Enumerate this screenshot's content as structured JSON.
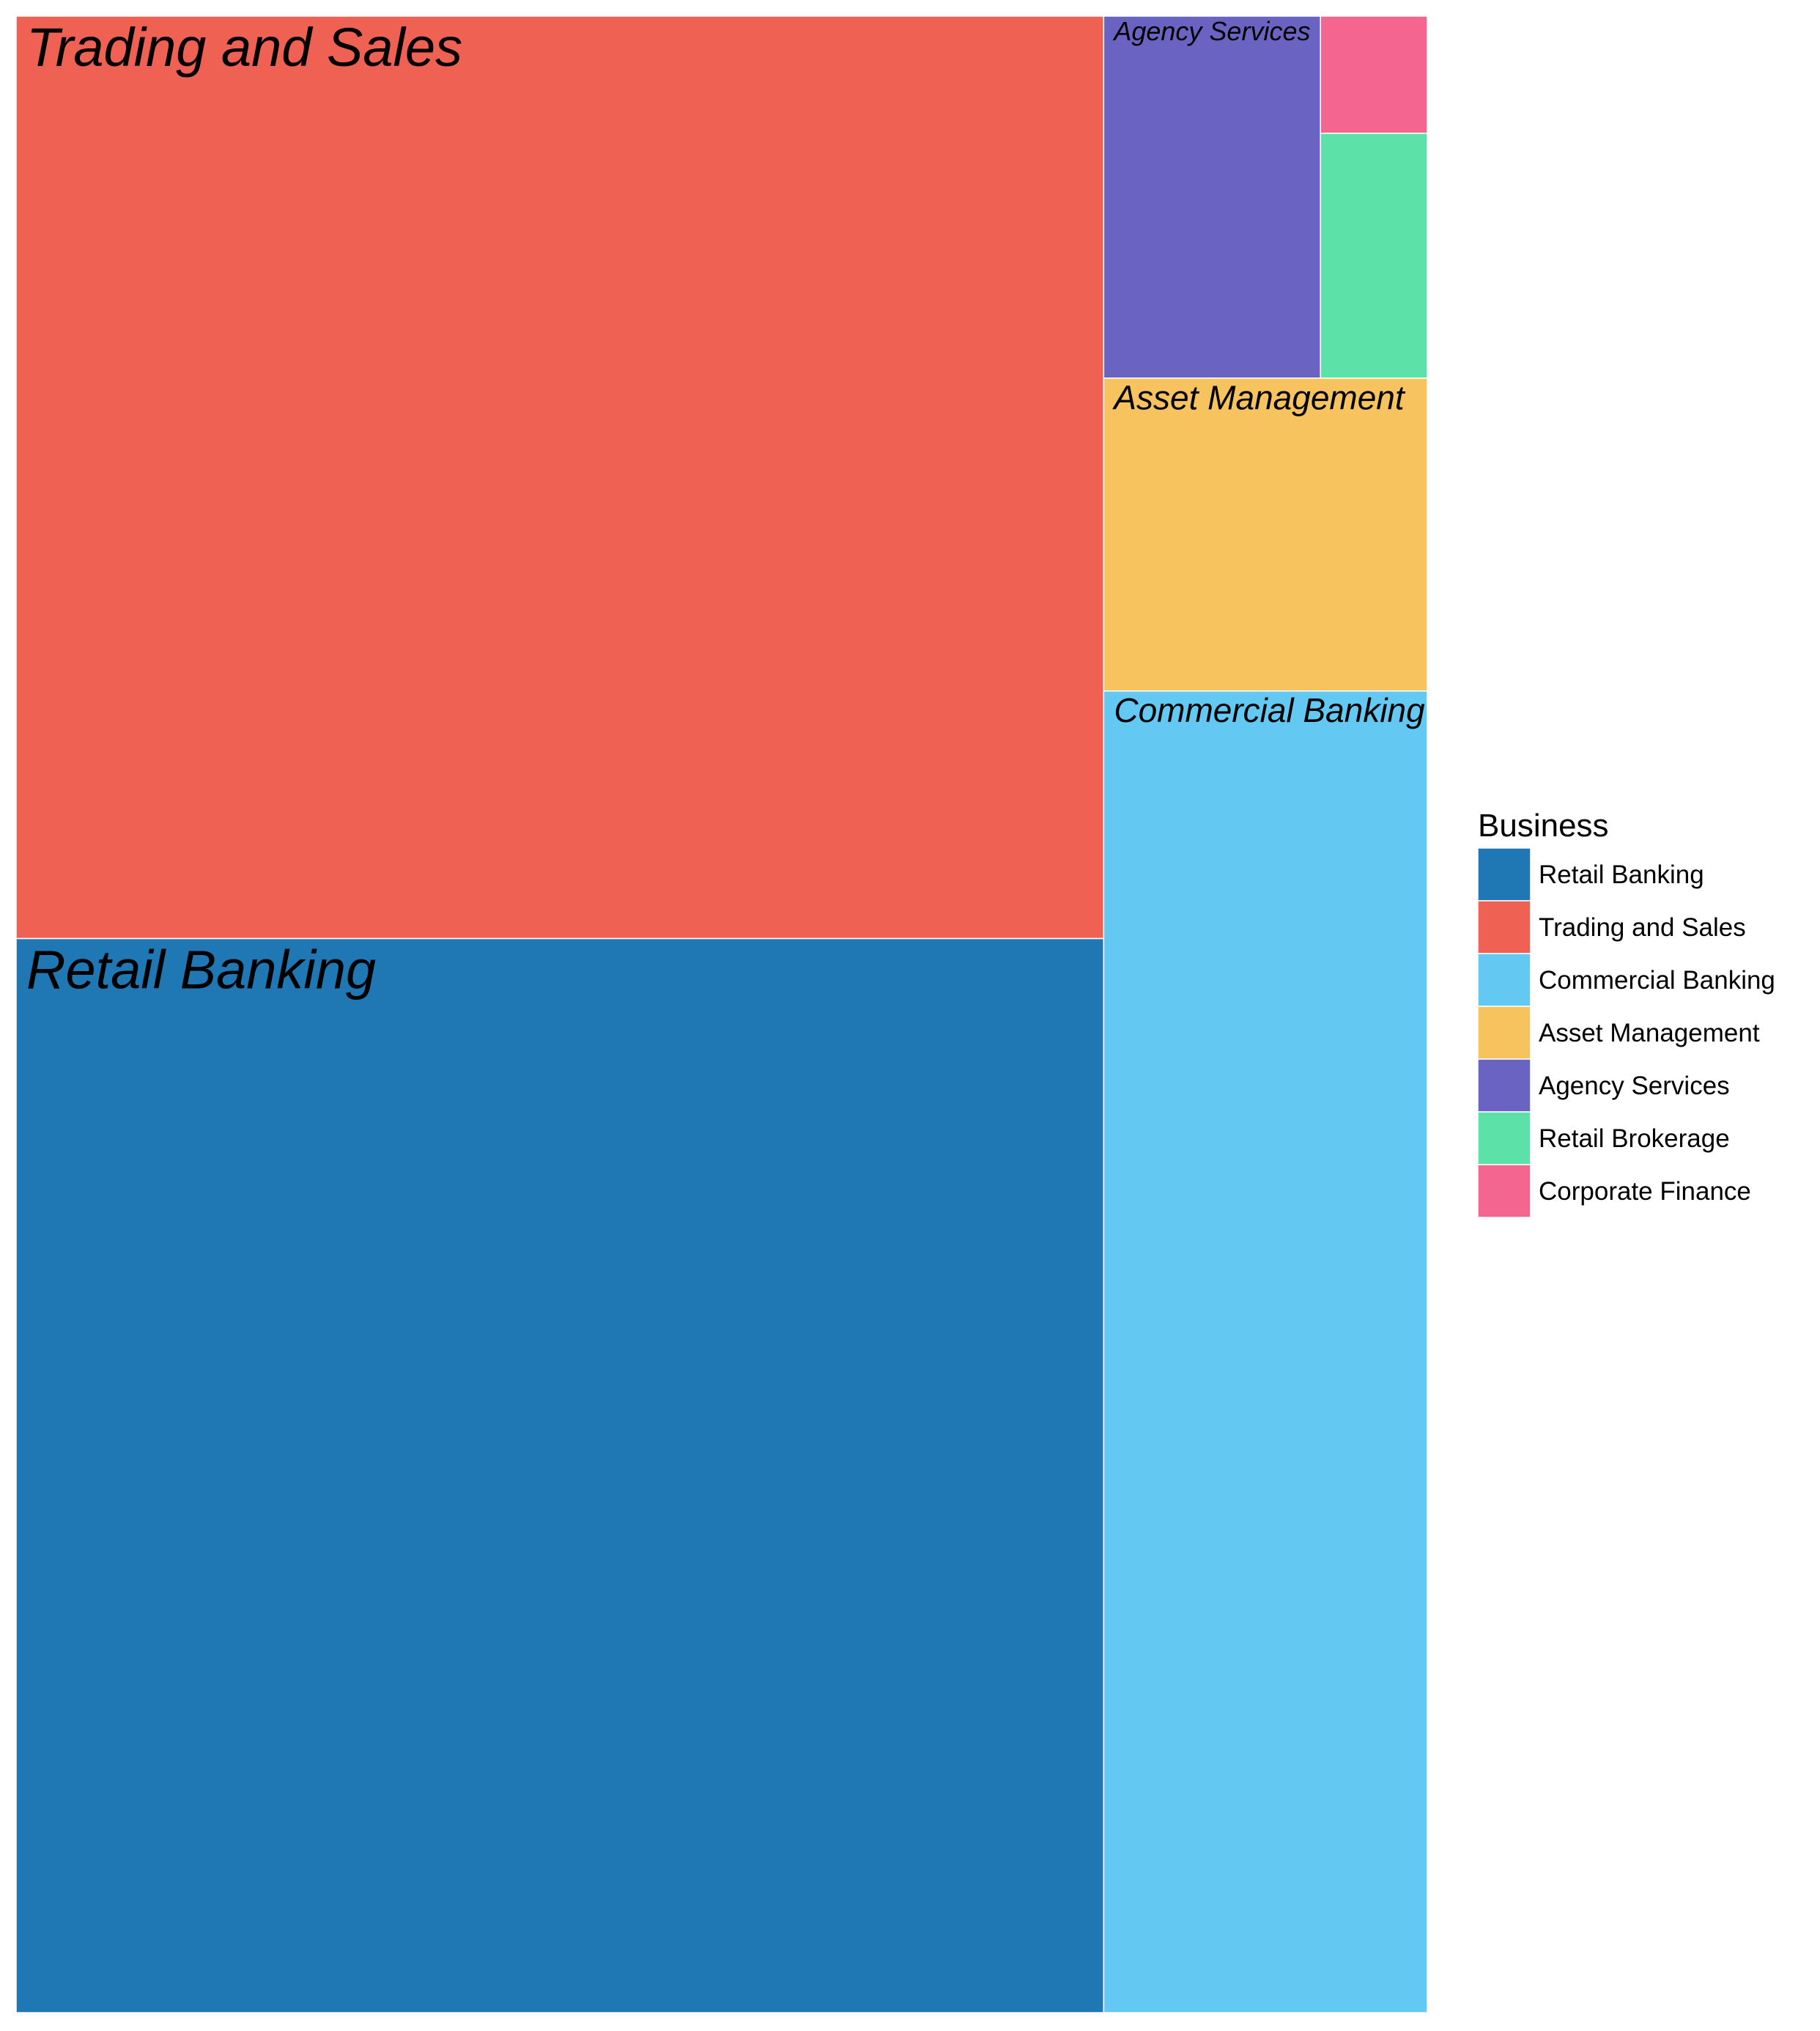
{
  "chart_data": {
    "type": "treemap",
    "title": "",
    "legend_title": "Business",
    "legend_position": "right",
    "items": [
      {
        "name": "Retail Banking",
        "value": 102.7,
        "color": "#1f77b4",
        "label": "Retail Banking"
      },
      {
        "name": "Trading and Sales",
        "value": 88.2,
        "color": "#ef6152",
        "label": "Trading and Sales"
      },
      {
        "name": "Commercial Banking",
        "value": 37.6,
        "color": "#63c8f2",
        "label": "Commercial Banking"
      },
      {
        "name": "Asset Management",
        "value": 8.9,
        "color": "#f6c35f",
        "label": "Asset Management"
      },
      {
        "name": "Agency Services",
        "value": 6.9,
        "color": "#6b63c2",
        "label": "Agency Services"
      },
      {
        "name": "Retail Brokerage",
        "value": 2.3,
        "color": "#5ce1a8",
        "label": ""
      },
      {
        "name": "Corporate Finance",
        "value": 1.1,
        "color": "#f46590",
        "label": ""
      }
    ]
  }
}
